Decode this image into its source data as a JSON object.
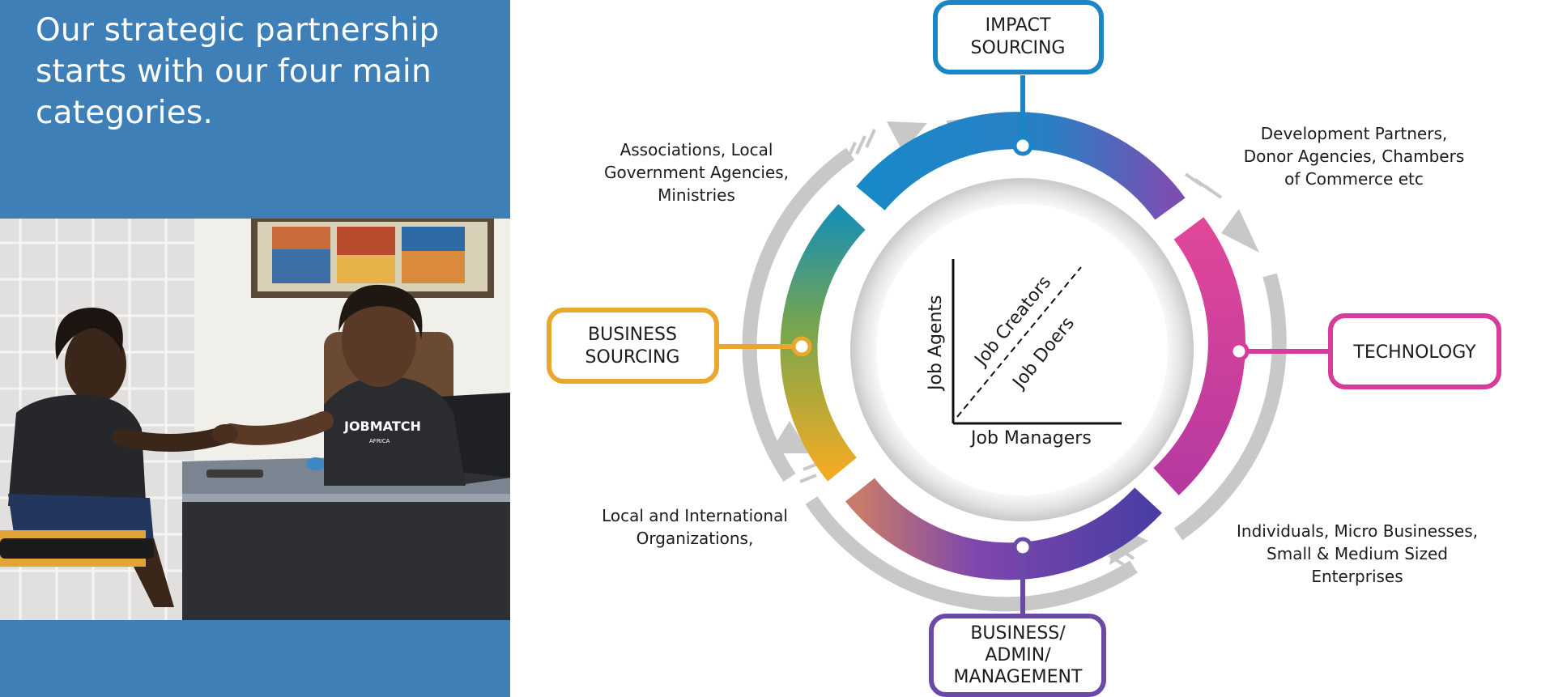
{
  "headline": {
    "lines": [
      "Our strategic partnership",
      "starts with our four main",
      "categories."
    ]
  },
  "photo": {
    "shirt_logo_text": "JOBMATCH",
    "shirt_logo_subtext": "AFRICA"
  },
  "diagram": {
    "categories": {
      "impact": {
        "lines": [
          "IMPACT",
          "SOURCING"
        ],
        "color": "#1b86c6"
      },
      "technology": {
        "lines": [
          "TECHNOLOGY"
        ],
        "color": "#d63d9a"
      },
      "business_admin": {
        "lines": [
          "BUSINESS/",
          "ADMIN/",
          "MANAGEMENT"
        ],
        "color": "#6a4aa6"
      },
      "business_sourcing": {
        "lines": [
          "BUSINESS",
          "SOURCING"
        ],
        "color": "#e9a82d"
      }
    },
    "descriptions": {
      "top_left": [
        "Associations, Local",
        "Government Agencies,",
        "Ministries"
      ],
      "top_right": [
        "Development Partners,",
        "Donor Agencies, Chambers",
        "of Commerce etc"
      ],
      "bottom_left": [
        "Local and International",
        "Organizations,"
      ],
      "bottom_right": [
        "Individuals, Micro Businesses,",
        "Small & Medium Sized",
        "Enterprises"
      ]
    },
    "core": {
      "y_axis_label": "Job Agents",
      "x_axis_label": "Job Managers",
      "diagonal_upper_label": "Job Creators",
      "diagonal_lower_label": "Job Doers"
    }
  }
}
